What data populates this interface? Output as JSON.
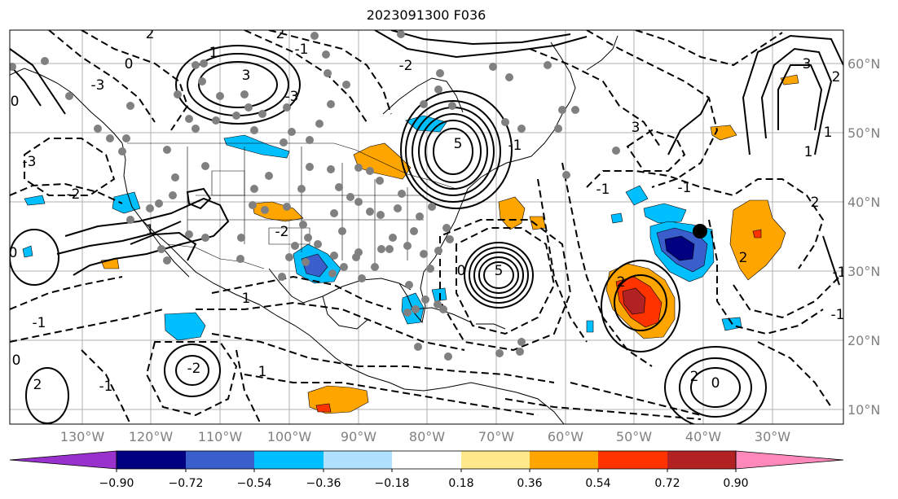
{
  "title": "2023091300 F036",
  "lon_labels": [
    "130°W",
    "120°W",
    "110°W",
    "100°W",
    "90°W",
    "80°W",
    "70°W",
    "60°W",
    "50°W",
    "40°W",
    "30°W"
  ],
  "lat_labels": [
    "60°N",
    "50°N",
    "40°N",
    "30°N",
    "20°N",
    "10°N"
  ],
  "colorbar": {
    "tick_labels": [
      "−0.90",
      "−0.72",
      "−0.54",
      "−0.36",
      "−0.18",
      "0.18",
      "0.36",
      "0.54",
      "0.72",
      "0.90"
    ],
    "colors": [
      "#9932cc",
      "#000080",
      "#3a5fcd",
      "#00bfff",
      "#b0e2ff",
      "#ffffff",
      "#ffe98a",
      "#ffa500",
      "#ff3300",
      "#b22222",
      "#ff88bb"
    ]
  },
  "contour_labels": [
    {
      "text": "2"
    },
    {
      "text": "2"
    },
    {
      "text": "3"
    },
    {
      "text": "-1"
    },
    {
      "text": "0"
    },
    {
      "text": "-3"
    },
    {
      "text": "3"
    },
    {
      "text": "2"
    },
    {
      "text": "1"
    },
    {
      "text": "0"
    },
    {
      "text": "-3"
    },
    {
      "text": "5"
    },
    {
      "text": "-1"
    },
    {
      "text": "-2"
    },
    {
      "text": "-1"
    },
    {
      "text": "3"
    },
    {
      "text": "1"
    },
    {
      "text": "-1"
    },
    {
      "text": "2"
    },
    {
      "text": "1"
    },
    {
      "text": "-3"
    },
    {
      "text": "-2"
    },
    {
      "text": "5"
    },
    {
      "text": "2"
    },
    {
      "text": "-1"
    },
    {
      "text": "0"
    },
    {
      "text": "1"
    },
    {
      "text": "2"
    },
    {
      "text": "-1"
    },
    {
      "text": "0"
    },
    {
      "text": "-1"
    },
    {
      "text": "0"
    },
    {
      "text": "2"
    },
    {
      "text": "-1"
    },
    {
      "text": "1"
    },
    {
      "text": "1"
    },
    {
      "text": "-2"
    },
    {
      "text": "0"
    },
    {
      "text": "-2"
    },
    {
      "text": "2"
    }
  ]
}
